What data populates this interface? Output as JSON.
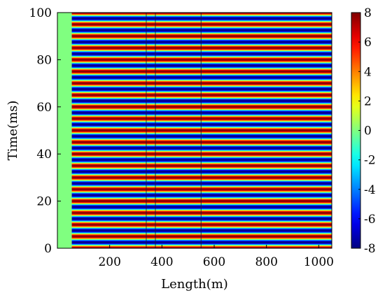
{
  "chart_data": {
    "type": "heatmap",
    "title": "",
    "xlabel": "Length(m)",
    "ylabel": "Time(ms)",
    "xlim": [
      0,
      1050
    ],
    "ylim": [
      0,
      100
    ],
    "xticks": [
      {
        "value": 200,
        "label": "200"
      },
      {
        "value": 400,
        "label": "400"
      },
      {
        "value": 600,
        "label": "600"
      },
      {
        "value": 800,
        "label": "800"
      },
      {
        "value": 1000,
        "label": "1000"
      }
    ],
    "yticks": [
      {
        "value": 0,
        "label": "0"
      },
      {
        "value": 20,
        "label": "20"
      },
      {
        "value": 40,
        "label": "40"
      },
      {
        "value": 60,
        "label": "60"
      },
      {
        "value": 80,
        "label": "80"
      },
      {
        "value": 100,
        "label": "100"
      }
    ],
    "colorbar": {
      "colormap": "jet",
      "range": [
        -8,
        8
      ],
      "ticks": [
        {
          "value": 8,
          "label": "8"
        },
        {
          "value": 6,
          "label": "6"
        },
        {
          "value": 4,
          "label": "4"
        },
        {
          "value": 2,
          "label": "2"
        },
        {
          "value": 0,
          "label": "0"
        },
        {
          "value": -2,
          "label": "-2"
        },
        {
          "value": -4,
          "label": "-4"
        },
        {
          "value": -6,
          "label": "-6"
        },
        {
          "value": -8,
          "label": "-8"
        }
      ]
    },
    "field": {
      "amplitude": 8,
      "period_ms": 5,
      "quiet_zone_length_m": [
        0,
        55
      ],
      "quiet_zone_value": 0,
      "dark_vertical_lines_length_m": [
        340,
        375,
        550
      ]
    },
    "grid": false,
    "legend": "colorbar-right"
  }
}
